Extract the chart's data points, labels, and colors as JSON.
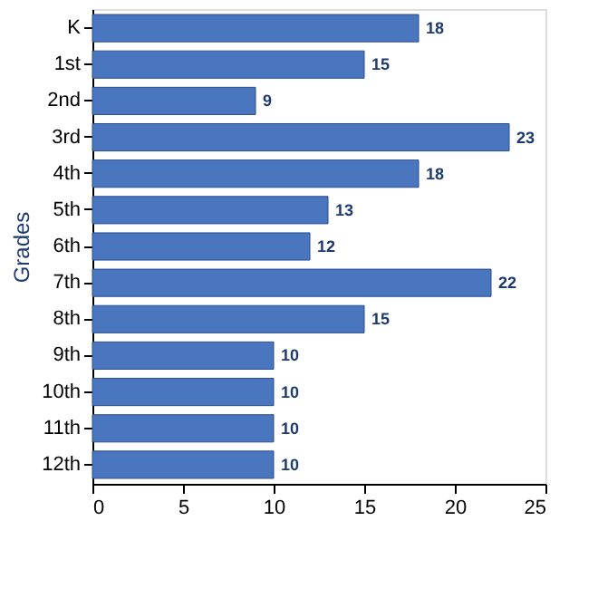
{
  "chart_data": {
    "type": "bar",
    "orientation": "horizontal",
    "ylabel": "Grades",
    "categories": [
      "K",
      "1st",
      "2nd",
      "3rd",
      "4th",
      "5th",
      "6th",
      "7th",
      "8th",
      "9th",
      "10th",
      "11th",
      "12th"
    ],
    "values": [
      18,
      15,
      9,
      23,
      18,
      13,
      12,
      22,
      15,
      10,
      10,
      10,
      10
    ],
    "color": "#4a76c0",
    "xlim": [
      0,
      25
    ],
    "xticks": [
      0,
      5,
      10,
      15,
      20,
      25
    ],
    "grid": false,
    "data_labels": true
  }
}
